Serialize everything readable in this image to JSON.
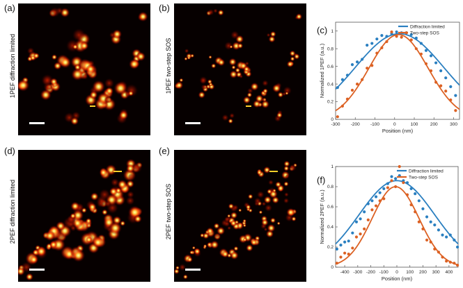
{
  "figure": {
    "panels": [
      {
        "id": "a",
        "label": "(a)",
        "ylabel": "1PEF diffraction limited"
      },
      {
        "id": "b",
        "label": "(b)",
        "ylabel": "1PEF two-step SOS"
      },
      {
        "id": "c",
        "label": "(c)"
      },
      {
        "id": "d",
        "label": "(d)",
        "ylabel": "2PEF diffraction limited"
      },
      {
        "id": "e",
        "label": "(e)",
        "ylabel": "2PEF two-step SOS"
      },
      {
        "id": "f",
        "label": "(f)"
      }
    ],
    "colors": {
      "blue": "#2a7fc0",
      "orange": "#dc6123",
      "hot_bg": "#060000"
    }
  },
  "chart_data": [
    {
      "type": "scatter",
      "panel": "c",
      "xlabel": "Position (nm)",
      "ylabel": "Normalized 1PEF (a.u.)",
      "xlim": [
        -300,
        330
      ],
      "ylim": [
        0,
        1.1
      ],
      "xticks": [
        -300,
        -200,
        -100,
        0,
        100,
        200,
        300
      ],
      "xtick_labels": [
        "-300",
        "-200",
        "-100",
        "0",
        "100",
        "200",
        "300"
      ],
      "yticks": [
        0,
        0.2,
        0.4,
        0.6,
        0.8,
        1
      ],
      "ytick_labels": [
        "0",
        "0.2",
        "0.4",
        "0.6",
        "0.8",
        "1"
      ],
      "legend": "top-right",
      "series": [
        {
          "name": "Diffraction limited",
          "color": "#2a7fc0",
          "points": [
            [
              -290,
              0.36
            ],
            [
              -265,
              0.45
            ],
            [
              -240,
              0.5
            ],
            [
              -215,
              0.62
            ],
            [
              -190,
              0.65
            ],
            [
              -165,
              0.68
            ],
            [
              -140,
              0.84
            ],
            [
              -115,
              0.86
            ],
            [
              -90,
              0.91
            ],
            [
              -65,
              0.95
            ],
            [
              -40,
              0.94
            ],
            [
              -15,
              0.97
            ],
            [
              10,
              0.99
            ],
            [
              35,
              0.98
            ],
            [
              60,
              0.98
            ],
            [
              85,
              0.96
            ],
            [
              110,
              0.92
            ],
            [
              135,
              0.86
            ],
            [
              160,
              0.78
            ],
            [
              185,
              0.72
            ],
            [
              210,
              0.64
            ],
            [
              235,
              0.55
            ],
            [
              260,
              0.47
            ],
            [
              285,
              0.37
            ],
            [
              310,
              0.27
            ]
          ],
          "fit": {
            "mu": 25,
            "sigma": 225,
            "amp": 0.97
          }
        },
        {
          "name": "Two-step SOS",
          "color": "#dc6123",
          "points": [
            [
              -290,
              0.03
            ],
            [
              -265,
              0.15
            ],
            [
              -240,
              0.23
            ],
            [
              -215,
              0.33
            ],
            [
              -190,
              0.4
            ],
            [
              -165,
              0.45
            ],
            [
              -140,
              0.58
            ],
            [
              -115,
              0.61
            ],
            [
              -90,
              0.75
            ],
            [
              -65,
              0.81
            ],
            [
              -40,
              0.88
            ],
            [
              -15,
              0.99
            ],
            [
              10,
              0.94
            ],
            [
              35,
              0.93
            ],
            [
              60,
              0.98
            ],
            [
              85,
              0.9
            ],
            [
              110,
              0.8
            ],
            [
              135,
              0.74
            ],
            [
              160,
              0.63
            ],
            [
              185,
              0.55
            ],
            [
              210,
              0.42
            ],
            [
              235,
              0.38
            ],
            [
              260,
              0.32
            ],
            [
              285,
              0.22
            ],
            [
              310,
              0.1
            ]
          ],
          "fit": {
            "mu": 20,
            "sigma": 150,
            "amp": 0.96
          }
        }
      ]
    },
    {
      "type": "scatter",
      "panel": "f",
      "xlabel": "Position (nm)",
      "ylabel": "Normalized 2PEF (a.u.)",
      "xlim": [
        -470,
        470
      ],
      "ylim": [
        0,
        1
      ],
      "xticks": [
        -400,
        -300,
        -200,
        -100,
        0,
        100,
        200,
        300,
        400
      ],
      "xtick_labels": [
        "-400",
        "-300",
        "-200",
        "-100",
        "0",
        "100",
        "200",
        "300",
        "400"
      ],
      "yticks": [
        0,
        0.2,
        0.4,
        0.6,
        0.8,
        1
      ],
      "ytick_labels": [
        "0",
        "0.2",
        "0.4",
        "0.6",
        "0.8",
        "1"
      ],
      "legend": "top-right",
      "series": [
        {
          "name": "Diffraction limited",
          "color": "#2a7fc0",
          "points": [
            [
              -460,
              0.18
            ],
            [
              -430,
              0.22
            ],
            [
              -400,
              0.25
            ],
            [
              -370,
              0.26
            ],
            [
              -340,
              0.34
            ],
            [
              -310,
              0.45
            ],
            [
              -280,
              0.48
            ],
            [
              -250,
              0.55
            ],
            [
              -220,
              0.63
            ],
            [
              -190,
              0.66
            ],
            [
              -160,
              0.7
            ],
            [
              -130,
              0.74
            ],
            [
              -100,
              0.78
            ],
            [
              -70,
              0.83
            ],
            [
              -40,
              0.9
            ],
            [
              -10,
              0.88
            ],
            [
              20,
              0.91
            ],
            [
              50,
              0.86
            ],
            [
              80,
              0.84
            ],
            [
              110,
              0.78
            ],
            [
              140,
              0.73
            ],
            [
              170,
              0.66
            ],
            [
              200,
              0.58
            ],
            [
              230,
              0.5
            ],
            [
              260,
              0.45
            ],
            [
              290,
              0.42
            ],
            [
              320,
              0.37
            ],
            [
              350,
              0.32
            ],
            [
              380,
              0.3
            ],
            [
              410,
              0.32
            ],
            [
              440,
              0.27
            ],
            [
              465,
              0.2
            ]
          ],
          "fit": {
            "mu": 0,
            "sigma": 290,
            "amp": 0.86
          }
        },
        {
          "name": "Two-step SOS",
          "color": "#dc6123",
          "points": [
            [
              -460,
              0.04
            ],
            [
              -430,
              0.1
            ],
            [
              -400,
              0.14
            ],
            [
              -370,
              0.13
            ],
            [
              -340,
              0.19
            ],
            [
              -310,
              0.3
            ],
            [
              -280,
              0.33
            ],
            [
              -250,
              0.38
            ],
            [
              -220,
              0.47
            ],
            [
              -190,
              0.57
            ],
            [
              -160,
              0.61
            ],
            [
              -130,
              0.66
            ],
            [
              -100,
              0.68
            ],
            [
              -70,
              0.79
            ],
            [
              -40,
              0.86
            ],
            [
              -10,
              0.8
            ],
            [
              20,
              1.0
            ],
            [
              50,
              0.84
            ],
            [
              80,
              0.72
            ],
            [
              110,
              0.62
            ],
            [
              140,
              0.55
            ],
            [
              170,
              0.45
            ],
            [
              200,
              0.38
            ],
            [
              230,
              0.27
            ],
            [
              260,
              0.25
            ],
            [
              290,
              0.18
            ],
            [
              320,
              0.15
            ],
            [
              350,
              0.1
            ],
            [
              380,
              0.06
            ],
            [
              410,
              0.05
            ],
            [
              440,
              0.04
            ],
            [
              465,
              0.02
            ]
          ],
          "fit": {
            "mu": -10,
            "sigma": 180,
            "amp": 0.8
          }
        }
      ]
    }
  ]
}
